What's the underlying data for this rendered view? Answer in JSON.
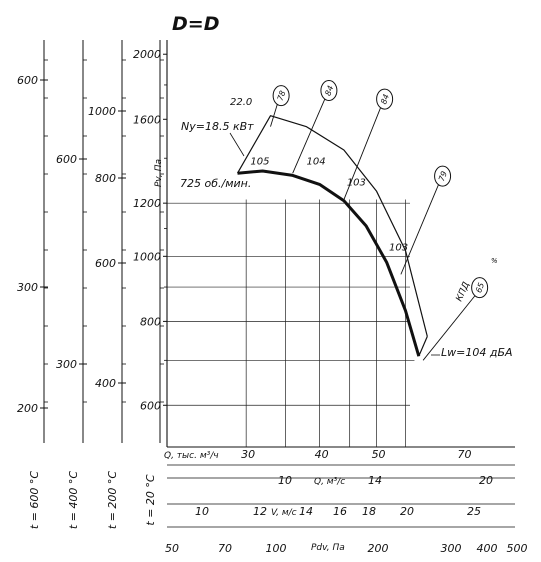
{
  "chart_data": {
    "type": "line",
    "title": "D=D",
    "ylabel": "Pv, Па",
    "y_scale": "log",
    "ylim": [
      520,
      2100
    ],
    "y_ticks": [
      600,
      800,
      1000,
      1200,
      1600,
      2000
    ],
    "x_scale": "log",
    "xlabel_flow": "Q, тыс. м³/ч",
    "x_ticks_flow": [
      30,
      40,
      50,
      70
    ],
    "xlabel_flow_s": "Q, м³/с",
    "x_ticks_flow_s": [
      10,
      14,
      20
    ],
    "xlabel_velocity": "V, м/с",
    "x_ticks_velocity": [
      10,
      12,
      14,
      16,
      18,
      20,
      25
    ],
    "xlabel_dynamic": "Pdv, Па",
    "x_ticks_dynamic": [
      50,
      70,
      100,
      200,
      300,
      400,
      500
    ],
    "speed_label": "725 об./мин.",
    "power_label": "Ny=18.5 кВт",
    "power_max_label": "22.0",
    "noise_label": "Lw=104 дБА",
    "efficiency_label": "КПД",
    "efficiency_unit": "%",
    "series": [
      {
        "name": "Pv",
        "x": [
          29,
          32,
          36,
          40,
          44,
          48,
          52,
          56,
          59
        ],
        "y": [
          1330,
          1340,
          1320,
          1280,
          1210,
          1110,
          980,
          830,
          710
        ]
      },
      {
        "x": [
          29,
          33,
          38,
          44,
          50,
          56,
          61
        ],
        "y": [
          1330,
          1620,
          1560,
          1440,
          1250,
          1020,
          760
        ]
      }
    ],
    "efficiency_circles": [
      "78",
      "84",
      "84",
      "79",
      "65"
    ],
    "noise_labels": [
      "105",
      "104",
      "103",
      "103"
    ],
    "temperature_scales": [
      {
        "label": "t = 600 °C",
        "ticks": [
          "600",
          "300",
          "200"
        ]
      },
      {
        "label": "t = 400 °C",
        "ticks": [
          "600",
          "300"
        ]
      },
      {
        "label": "t = 200 °C",
        "ticks": [
          "1000",
          "800",
          "600",
          "400"
        ]
      },
      {
        "label": "t = 20 °C",
        "ticks": []
      }
    ]
  }
}
